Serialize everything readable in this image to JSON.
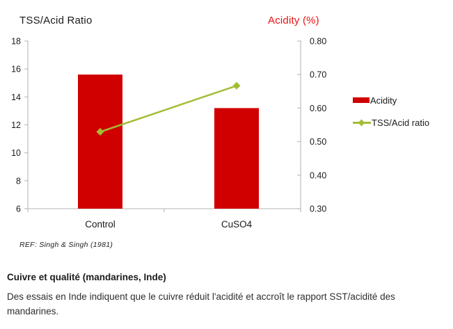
{
  "chart": {
    "ref_note": "REF: Singh & Singh (1981)"
  },
  "chart_data": {
    "type": "bar",
    "subtype": "dual-axis bar + line combo",
    "categories": [
      "Control",
      "CuSO4"
    ],
    "series": [
      {
        "name": "Acidity",
        "type": "bar",
        "axis": "right",
        "color": "#d10000",
        "values": [
          0.7,
          0.6
        ]
      },
      {
        "name": "TSS/Acid ratio",
        "type": "line",
        "axis": "left",
        "color": "#a2bd35",
        "values": [
          11.5,
          14.8
        ]
      }
    ],
    "left_axis": {
      "title": "TSS/Acid Ratio",
      "min": 6,
      "max": 18,
      "step": 2,
      "tick_labels": [
        "6",
        "8",
        "10",
        "12",
        "14",
        "16",
        "18"
      ]
    },
    "right_axis": {
      "title": "Acidity (%)",
      "min": 0.3,
      "max": 0.8,
      "step": 0.1,
      "tick_labels": [
        "0.30",
        "0.40",
        "0.50",
        "0.60",
        "0.70",
        "0.80"
      ]
    },
    "grid": "off",
    "legend_position": "right",
    "axis_color": "#c4c4c4",
    "title_color_right": "#ee1111"
  },
  "caption": {
    "title": "Cuivre et qualité (mandarines, Inde)",
    "body": "Des essais en Inde indiquent que le cuivre réduit l'acidité et accroît le rapport SST/acidité des mandarines."
  }
}
